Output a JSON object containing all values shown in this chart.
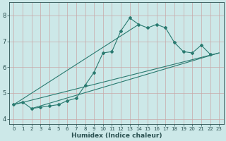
{
  "xlabel": "Humidex (Indice chaleur)",
  "background_color": "#cce8e8",
  "grid_color": "#c8a8a8",
  "line_color": "#2a7a70",
  "xlim": [
    -0.5,
    23.5
  ],
  "ylim": [
    3.8,
    8.5
  ],
  "xticks": [
    0,
    1,
    2,
    3,
    4,
    5,
    6,
    7,
    8,
    9,
    10,
    11,
    12,
    13,
    14,
    15,
    16,
    17,
    18,
    19,
    20,
    21,
    22,
    23
  ],
  "yticks": [
    4,
    5,
    6,
    7,
    8
  ],
  "series": [
    [
      0,
      4.55
    ],
    [
      1,
      4.65
    ],
    [
      2,
      4.4
    ],
    [
      3,
      4.45
    ],
    [
      4,
      4.5
    ],
    [
      5,
      4.55
    ],
    [
      6,
      4.7
    ],
    [
      7,
      4.8
    ],
    [
      8,
      5.3
    ],
    [
      9,
      5.8
    ],
    [
      10,
      6.55
    ],
    [
      11,
      6.6
    ],
    [
      12,
      7.4
    ],
    [
      13,
      7.9
    ],
    [
      14,
      7.65
    ],
    [
      15,
      7.52
    ],
    [
      16,
      7.65
    ],
    [
      17,
      7.52
    ],
    [
      18,
      6.95
    ],
    [
      19,
      6.6
    ],
    [
      20,
      6.55
    ],
    [
      21,
      6.85
    ],
    [
      22,
      6.5
    ]
  ],
  "line2": [
    [
      0,
      4.55
    ],
    [
      23,
      6.55
    ]
  ],
  "line3": [
    [
      2,
      4.4
    ],
    [
      23,
      6.55
    ]
  ],
  "line4": [
    [
      0,
      4.55
    ],
    [
      14,
      7.65
    ]
  ]
}
